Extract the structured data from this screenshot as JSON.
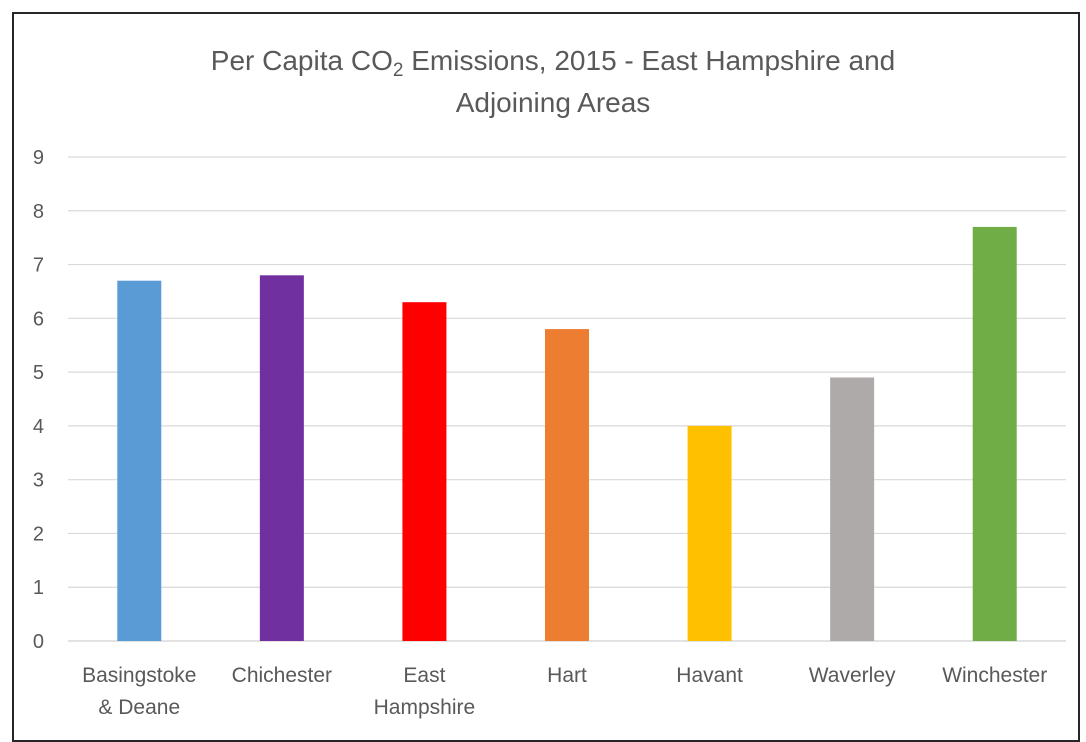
{
  "chart_data": {
    "type": "bar",
    "title": {
      "pre": "Per Capita CO",
      "sub": "2",
      "post": " Emissions, 2015 - East Hampshire and",
      "line2": "Adjoining Areas"
    },
    "xlabel": "",
    "ylabel": "",
    "ylim": [
      0,
      9
    ],
    "yticks": [
      "0",
      "1",
      "2",
      "3",
      "4",
      "5",
      "6",
      "7",
      "8",
      "9"
    ],
    "grid": true,
    "legend": "none",
    "categories": [
      [
        "Basingstoke",
        "& Deane"
      ],
      [
        "Chichester"
      ],
      [
        "East",
        "Hampshire"
      ],
      [
        "Hart"
      ],
      [
        "Havant"
      ],
      [
        "Waverley"
      ],
      [
        "Winchester"
      ]
    ],
    "values": [
      6.7,
      6.8,
      6.3,
      5.8,
      4.0,
      4.9,
      7.7
    ],
    "colors": [
      "#5b9bd5",
      "#7030a0",
      "#ff0000",
      "#ed7d31",
      "#ffc000",
      "#aeaaaa",
      "#70ad47"
    ],
    "gridColor": "#d9d9d9",
    "textColor": "#595959"
  }
}
